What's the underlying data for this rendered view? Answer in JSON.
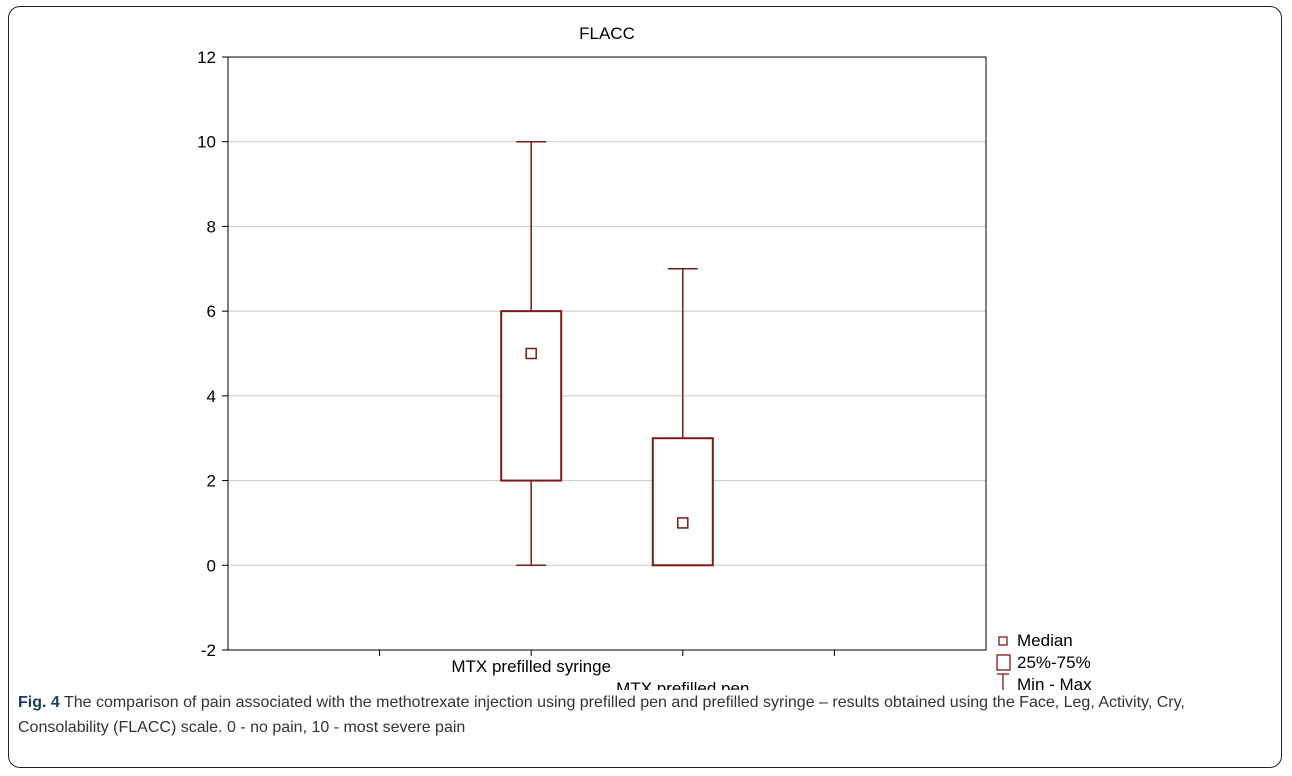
{
  "caption": {
    "label": "Fig. 4",
    "text": "The comparison of pain associated with the methotrexate injection using prefilled pen and prefilled syringe – results obtained using the Face, Leg, Activity, Cry, Consolability (FLACC) scale. 0 - no pain, 10 - most severe pain"
  },
  "chart_data": {
    "type": "boxplot",
    "title": "FLACC",
    "xlabel": "",
    "ylabel": "",
    "ylim": [
      -2,
      12
    ],
    "yticks": [
      -2,
      0,
      2,
      4,
      6,
      8,
      10,
      12
    ],
    "grid": true,
    "legend_position": "bottom-right",
    "color": "#7a1a1a",
    "categories": [
      "MTX prefilled syringe",
      "MTX prefilled pen"
    ],
    "boxes": [
      {
        "category": "MTX prefilled syringe",
        "min": 0,
        "q1": 2,
        "median": 5,
        "q3": 6,
        "max": 10
      },
      {
        "category": "MTX prefilled pen",
        "min": 0,
        "q1": 0,
        "median": 1,
        "q3": 3,
        "max": 7
      }
    ],
    "legend": [
      "Median",
      "25%-75%",
      "Min - Max"
    ]
  }
}
